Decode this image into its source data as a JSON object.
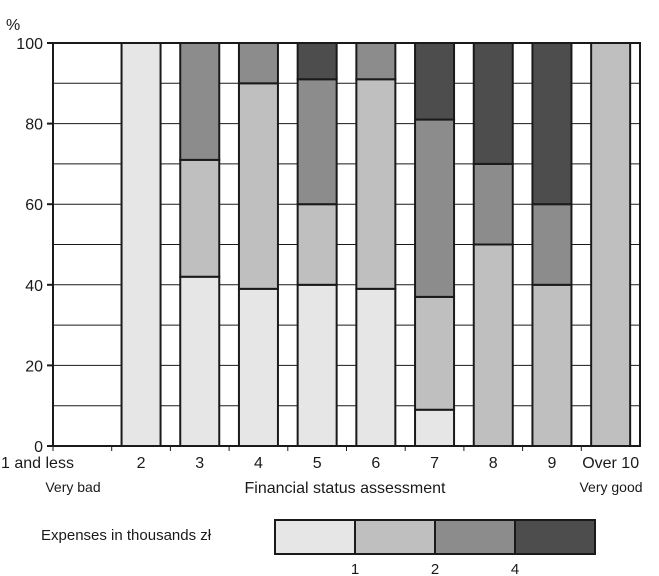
{
  "chart_data": {
    "type": "bar",
    "stacked": true,
    "ylabel": "%",
    "xlabel": "Financial status assessment",
    "ylim": [
      0,
      100
    ],
    "yticks": [
      0,
      20,
      40,
      60,
      80,
      100
    ],
    "grid": true,
    "categories": [
      "1 and less",
      "2",
      "3",
      "4",
      "5",
      "6",
      "7",
      "8",
      "9",
      "Over 10"
    ],
    "category_notes": {
      "first": "Very bad",
      "last": "Very good"
    },
    "series": [
      {
        "values": [
          0,
          100,
          42,
          39,
          40,
          39,
          9,
          0,
          0,
          0
        ],
        "color": "#e6e6e6"
      },
      {
        "values": [
          0,
          0,
          29,
          51,
          20,
          52,
          28,
          50,
          40,
          100
        ],
        "color": "#bfbfbf"
      },
      {
        "values": [
          0,
          0,
          29,
          10,
          31,
          9,
          44,
          20,
          20,
          0
        ],
        "color": "#8c8c8c"
      },
      {
        "values": [
          0,
          0,
          0,
          0,
          9,
          0,
          19,
          30,
          40,
          0
        ],
        "color": "#4d4d4d"
      }
    ],
    "legend": {
      "title": "Expenses in thousands zł",
      "placement": "bottom",
      "boundary_labels": [
        "1",
        "2",
        "4"
      ]
    }
  }
}
